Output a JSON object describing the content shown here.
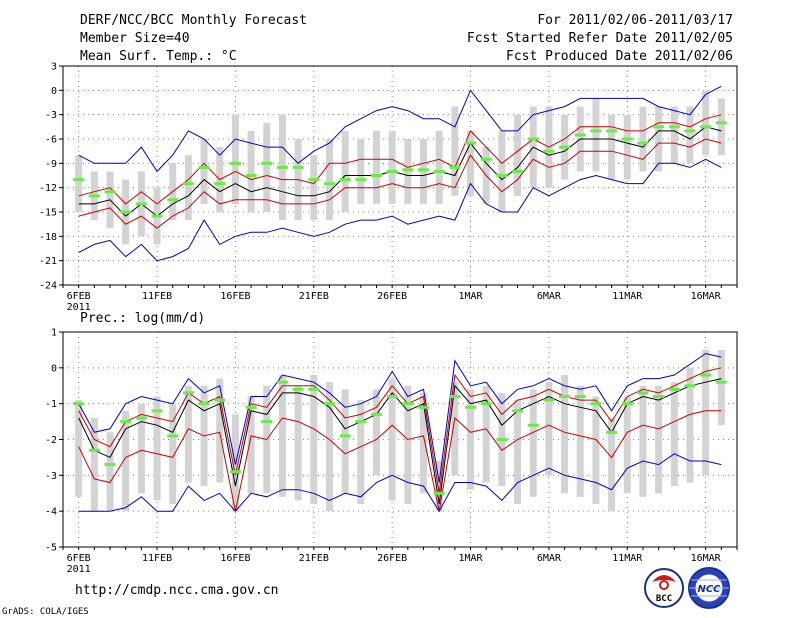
{
  "header": {
    "title": "DERF/NCC/BCC Monthly Forecast",
    "member_size": "Member Size=40",
    "variable": "Mean Surf. Temp.: °C",
    "period": "For 2011/02/06-2011/03/17",
    "started": "Fcst Started Refer Date 2011/02/05",
    "produced": "Fcst Produced Date 2011/02/06"
  },
  "footer": {
    "url": "http://cmdp.ncc.cma.gov.cn",
    "grads": "GrADS: COLA/IGES",
    "logo_bcc": "BCC",
    "logo_ncc": "NCC"
  },
  "colors": {
    "ensemble_range": "#0000cc",
    "spread": "#cc0000",
    "mean": "#000000",
    "climatology": "#66ee44",
    "bars": "#d3d3d3",
    "grid": "#888888"
  },
  "chart_data": [
    {
      "type": "line",
      "title": "Mean Surf. Temp.: °C",
      "xlabels": [
        "6FEB",
        "11FEB",
        "16FEB",
        "21FEB",
        "26FEB",
        "1MAR",
        "6MAR",
        "11MAR",
        "16MAR"
      ],
      "year_label": "2011",
      "xtick_days": [
        1,
        6,
        11,
        16,
        21,
        26,
        31,
        36,
        41
      ],
      "xlim": [
        0,
        43
      ],
      "ylim": [
        -24,
        3
      ],
      "yticks": [
        3,
        0,
        -3,
        -6,
        -9,
        -12,
        -15,
        -18,
        -21,
        -24
      ],
      "x": [
        1,
        2,
        3,
        4,
        5,
        6,
        7,
        8,
        9,
        10,
        11,
        12,
        13,
        14,
        15,
        16,
        17,
        18,
        19,
        20,
        21,
        22,
        23,
        24,
        25,
        26,
        27,
        28,
        29,
        30,
        31,
        32,
        33,
        34,
        35,
        36,
        37,
        38,
        39,
        40,
        41,
        42
      ],
      "bars": [
        [
          -15,
          -8
        ],
        [
          -16,
          -10
        ],
        [
          -17,
          -10
        ],
        [
          -19,
          -11
        ],
        [
          -18,
          -10
        ],
        [
          -19,
          -12
        ],
        [
          -16,
          -9
        ],
        [
          -16,
          -8
        ],
        [
          -14,
          -6
        ],
        [
          -15,
          -7
        ],
        [
          -14,
          -3
        ],
        [
          -15,
          -5
        ],
        [
          -15,
          -4
        ],
        [
          -16,
          -3
        ],
        [
          -16,
          -6
        ],
        [
          -16,
          -8
        ],
        [
          -16,
          -6
        ],
        [
          -15,
          -5
        ],
        [
          -14,
          -6
        ],
        [
          -14,
          -5
        ],
        [
          -14,
          -5
        ],
        [
          -14,
          -6
        ],
        [
          -14,
          -6
        ],
        [
          -14,
          -5
        ],
        [
          -13,
          -2
        ],
        [
          -13,
          -5
        ],
        [
          -14,
          -7
        ],
        [
          -15,
          -5
        ],
        [
          -13,
          -3
        ],
        [
          -12,
          -2
        ],
        [
          -12,
          -2
        ],
        [
          -11,
          -3
        ],
        [
          -10,
          -2
        ],
        [
          -10,
          -1
        ],
        [
          -11,
          -3
        ],
        [
          -11,
          -3
        ],
        [
          -10,
          -2
        ],
        [
          -10,
          -2
        ],
        [
          -9,
          -2
        ],
        [
          -9,
          -2
        ],
        [
          -8,
          0
        ],
        [
          -8,
          -1
        ]
      ],
      "climatology": [
        -11,
        -13,
        -12.5,
        -15,
        -14,
        -15.5,
        -13.5,
        -11.5,
        -9.5,
        -11.5,
        -9,
        -10.5,
        -9,
        -9.5,
        -9.5,
        -11,
        -11.5,
        -11,
        -11,
        -10.5,
        -10,
        -9.8,
        -9.8,
        -10,
        -9.5,
        -6.5,
        -8.5,
        -10.5,
        -10,
        -6,
        -7.5,
        -7,
        -5.5,
        -5,
        -5,
        -6,
        -6.5,
        -4.5,
        -4.5,
        -5,
        -4.5,
        -4
      ],
      "series": [
        {
          "name": "Ensemble max",
          "role": "upper_range",
          "values": [
            -8,
            -9,
            -9,
            -9,
            -7,
            -10,
            -8,
            -5,
            -6,
            -8,
            -6,
            -6.5,
            -7,
            -7,
            -9,
            -7.5,
            -6.5,
            -4.5,
            -3.5,
            -2.5,
            -2,
            -2.5,
            -3.5,
            -3.5,
            -4.5,
            0,
            -2.5,
            -5,
            -5,
            -3,
            -2.5,
            -2,
            -1,
            -1,
            -1,
            -1,
            -1,
            -2,
            -2.5,
            -3,
            -0.5,
            0.5
          ]
        },
        {
          "name": "Upper spread",
          "role": "upper_spread",
          "values": [
            -13,
            -12.5,
            -12,
            -14,
            -12.5,
            -14,
            -12.5,
            -11,
            -9,
            -11,
            -10,
            -11,
            -10.5,
            -11,
            -11,
            -11.5,
            -9,
            -9,
            -8.5,
            -8.5,
            -8.5,
            -9.5,
            -9,
            -8.5,
            -9.5,
            -5,
            -7,
            -9,
            -7.5,
            -6,
            -7,
            -6,
            -4.5,
            -4.5,
            -4.5,
            -5,
            -5,
            -4,
            -4,
            -4.5,
            -3.5,
            -3
          ]
        },
        {
          "name": "Ensemble mean",
          "role": "mean",
          "values": [
            -14,
            -14,
            -13.5,
            -15.5,
            -14,
            -15.5,
            -14,
            -13,
            -11,
            -12.5,
            -11.5,
            -12.5,
            -12,
            -12.5,
            -13,
            -13,
            -12.5,
            -10.5,
            -10.5,
            -10.5,
            -10,
            -10.5,
            -10.5,
            -10,
            -10.5,
            -6.5,
            -9,
            -11,
            -9.5,
            -7,
            -8,
            -7.5,
            -6,
            -6,
            -6,
            -6.5,
            -7,
            -5,
            -5,
            -6,
            -4.5,
            -5
          ]
        },
        {
          "name": "Lower spread",
          "role": "lower_spread",
          "values": [
            -15.5,
            -15,
            -14.5,
            -16.5,
            -15.5,
            -17,
            -15.5,
            -14.5,
            -12.5,
            -14,
            -13.5,
            -13.5,
            -13.5,
            -14,
            -14,
            -14,
            -13.5,
            -12,
            -12,
            -12,
            -11.5,
            -12,
            -12,
            -11.5,
            -12,
            -8,
            -10.5,
            -12.5,
            -11,
            -8.5,
            -9.5,
            -9,
            -7.5,
            -7.5,
            -7.5,
            -8,
            -8.5,
            -6.5,
            -6.5,
            -7,
            -6,
            -6.5
          ]
        },
        {
          "name": "Ensemble min",
          "role": "lower_range",
          "values": [
            -20,
            -19,
            -18.5,
            -20.5,
            -19,
            -21,
            -20.5,
            -19.5,
            -16,
            -19,
            -18,
            -17.5,
            -17.5,
            -17,
            -17.5,
            -18,
            -17.5,
            -16.5,
            -16,
            -16,
            -15.5,
            -16.5,
            -16,
            -15.5,
            -16,
            -11.5,
            -14,
            -15,
            -15,
            -12,
            -13,
            -12,
            -11,
            -10.5,
            -11,
            -11.5,
            -11.5,
            -9,
            -9,
            -9.5,
            -8.5,
            -9.5
          ]
        }
      ]
    },
    {
      "type": "line",
      "title": "Prec.: log(mm/d)",
      "xlabels": [
        "6FEB",
        "11FEB",
        "16FEB",
        "21FEB",
        "26FEB",
        "1MAR",
        "6MAR",
        "11MAR",
        "16MAR"
      ],
      "year_label": "2011",
      "xtick_days": [
        1,
        6,
        11,
        16,
        21,
        26,
        31,
        36,
        41
      ],
      "xlim": [
        0,
        43
      ],
      "ylim": [
        -5,
        1
      ],
      "yticks": [
        1,
        0,
        -1,
        -2,
        -3,
        -4,
        -5
      ],
      "x": [
        1,
        2,
        3,
        4,
        5,
        6,
        7,
        8,
        9,
        10,
        11,
        12,
        13,
        14,
        15,
        16,
        17,
        18,
        19,
        20,
        21,
        22,
        23,
        24,
        25,
        26,
        27,
        28,
        29,
        30,
        31,
        32,
        33,
        34,
        35,
        36,
        37,
        38,
        39,
        40,
        41,
        42
      ],
      "bars": [
        [
          -3.6,
          -0.9
        ],
        [
          -4,
          -1.4
        ],
        [
          -4,
          -1.8
        ],
        [
          -4,
          -1.2
        ],
        [
          -3.5,
          -1
        ],
        [
          -3.7,
          -0.8
        ],
        [
          -3.8,
          -1
        ],
        [
          -3.2,
          -0.5
        ],
        [
          -3.3,
          -0.5
        ],
        [
          -3.2,
          -0.3
        ],
        [
          -4,
          -1.3
        ],
        [
          -3.5,
          -0.8
        ],
        [
          -3.5,
          -0.5
        ],
        [
          -3.6,
          -0.2
        ],
        [
          -3.7,
          -0.5
        ],
        [
          -3.8,
          -0.2
        ],
        [
          -4,
          -0.4
        ],
        [
          -3.5,
          -0.6
        ],
        [
          -3.8,
          -0.9
        ],
        [
          -3,
          -0.6
        ],
        [
          -3.7,
          -0.3
        ],
        [
          -3.8,
          -0.5
        ],
        [
          -3.5,
          -0.7
        ],
        [
          -4,
          -2.6
        ],
        [
          -3,
          -0.4
        ],
        [
          -3.4,
          -0.6
        ],
        [
          -3.2,
          -0.5
        ],
        [
          -3.3,
          -0.7
        ],
        [
          -3.8,
          -0.9
        ],
        [
          -3.6,
          -0.6
        ],
        [
          -3,
          -0.4
        ],
        [
          -3.5,
          -0.2
        ],
        [
          -3.6,
          -0.5
        ],
        [
          -3.8,
          -0.8
        ],
        [
          -4,
          -1.4
        ],
        [
          -3.5,
          -0.8
        ],
        [
          -3.6,
          -0.5
        ],
        [
          -3.5,
          -0.5
        ],
        [
          -3.3,
          -0.4
        ],
        [
          -3.2,
          0
        ],
        [
          -3,
          0.5
        ],
        [
          -1.6,
          0.5
        ]
      ],
      "climatology": [
        -1,
        -2.3,
        -2.7,
        -1.5,
        -1.4,
        -1.2,
        -1.9,
        -0.7,
        -1,
        -0.9,
        -2.9,
        -1.1,
        -1.5,
        -0.4,
        -0.6,
        -0.6,
        -1,
        -1.9,
        -1.5,
        -1.3,
        -0.8,
        -1,
        -1.1,
        -3.5,
        -0.8,
        -1.1,
        -1,
        -2,
        -1.2,
        -1.6,
        -0.9,
        -0.8,
        -0.8,
        -1,
        -1.8,
        -1,
        -0.7,
        -0.8,
        -0.6,
        -0.5,
        -0.2,
        -0.4
      ],
      "series": [
        {
          "name": "Ensemble max",
          "role": "upper_range",
          "values": [
            -1,
            -1.8,
            -1.7,
            -1,
            -0.8,
            -0.9,
            -1,
            -0.3,
            -0.7,
            -0.5,
            -2.7,
            -0.8,
            -0.8,
            -0.2,
            -0.3,
            -0.4,
            -0.7,
            -1.1,
            -1,
            -0.8,
            -0.1,
            -0.8,
            -0.6,
            -3.2,
            0.2,
            -0.5,
            -0.4,
            -1,
            -0.6,
            -0.5,
            -0.3,
            -0.5,
            -0.6,
            -0.5,
            -1.2,
            -0.5,
            -0.3,
            -0.3,
            -0.2,
            0.1,
            0.4,
            0.3
          ]
        },
        {
          "name": "Upper spread",
          "role": "upper_spread",
          "values": [
            -1.2,
            -2,
            -2.2,
            -1.5,
            -1.3,
            -1.4,
            -1.5,
            -0.7,
            -1,
            -0.8,
            -3,
            -1,
            -1.1,
            -0.5,
            -0.5,
            -0.5,
            -0.9,
            -1.4,
            -1.3,
            -1.1,
            -0.5,
            -1,
            -0.8,
            -3.5,
            -0.2,
            -0.8,
            -0.7,
            -1.3,
            -0.9,
            -0.8,
            -0.6,
            -0.8,
            -0.9,
            -0.9,
            -1.5,
            -0.8,
            -0.6,
            -0.7,
            -0.5,
            -0.3,
            -0.1,
            0
          ]
        },
        {
          "name": "Ensemble mean",
          "role": "mean",
          "values": [
            -1.4,
            -2.3,
            -2.5,
            -1.7,
            -1.5,
            -1.6,
            -1.8,
            -0.9,
            -1.2,
            -1,
            -3.3,
            -1.2,
            -1.3,
            -0.7,
            -0.7,
            -0.8,
            -1.1,
            -1.7,
            -1.5,
            -1.3,
            -0.7,
            -1.2,
            -1,
            -3.8,
            -0.5,
            -1,
            -0.9,
            -1.6,
            -1.2,
            -1,
            -0.8,
            -1,
            -1.1,
            -1.2,
            -1.8,
            -1,
            -0.8,
            -0.9,
            -0.7,
            -0.5,
            -0.4,
            -0.3
          ]
        },
        {
          "name": "Lower spread",
          "role": "lower_spread",
          "values": [
            -2.2,
            -3.1,
            -3.2,
            -2.5,
            -2.3,
            -2.4,
            -2.5,
            -1.7,
            -1.9,
            -1.8,
            -4,
            -1.9,
            -2,
            -1.4,
            -1.5,
            -1.7,
            -2,
            -2.4,
            -2.2,
            -2,
            -1.6,
            -2,
            -1.9,
            -4,
            -1.4,
            -1.8,
            -1.7,
            -2.3,
            -2,
            -1.8,
            -1.6,
            -1.8,
            -1.9,
            -2,
            -2.5,
            -1.8,
            -1.6,
            -1.7,
            -1.5,
            -1.3,
            -1.2,
            -1.2
          ]
        },
        {
          "name": "Ensemble min",
          "role": "lower_range",
          "values": [
            -4,
            -4,
            -4,
            -3.9,
            -3.6,
            -4,
            -4,
            -3.3,
            -3.7,
            -3.5,
            -4,
            -3.5,
            -3.6,
            -3.4,
            -3.4,
            -3.5,
            -3.7,
            -3.5,
            -3.6,
            -3.2,
            -3,
            -3.2,
            -3.3,
            -4,
            -3.2,
            -3.2,
            -3.3,
            -3.7,
            -3.2,
            -3,
            -2.8,
            -3,
            -3.1,
            -3.2,
            -3.4,
            -2.8,
            -2.6,
            -2.7,
            -2.4,
            -2.6,
            -2.6,
            -2.7
          ]
        }
      ]
    }
  ]
}
